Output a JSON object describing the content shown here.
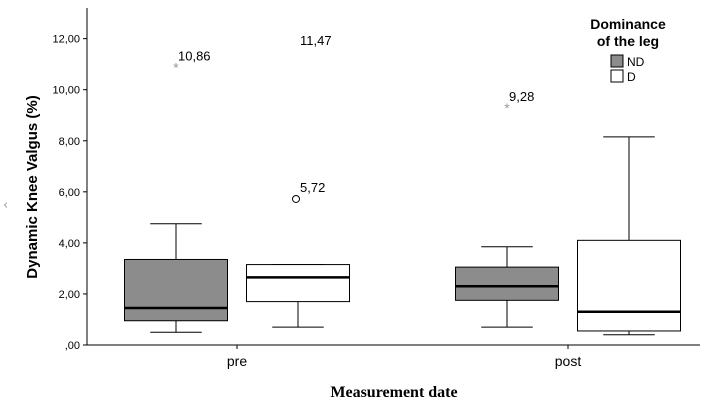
{
  "chart_data": {
    "type": "boxplot",
    "ylabel": "Dynamic Knee Valgus (%)",
    "xlabel": "Measurement date",
    "categories": [
      "pre",
      "post"
    ],
    "ylim": [
      0,
      13.2
    ],
    "yticks": [
      0,
      2,
      4,
      6,
      8,
      10,
      12
    ],
    "ytick_labels": [
      ",00",
      "2,00",
      "4,00",
      "6,00",
      "8,00",
      "10,00",
      "12,00"
    ],
    "legend": {
      "title_line1": "Dominance",
      "title_line2": "of the leg",
      "placement": "top-right",
      "entries": [
        {
          "name": "ND",
          "color": "#8c8c8c"
        },
        {
          "name": "D",
          "color": "#ffffff"
        }
      ]
    },
    "series": [
      {
        "name": "ND",
        "color": "#8c8c8c",
        "boxes": [
          {
            "category": "pre",
            "whisker_low": 0.5,
            "q1": 0.95,
            "median": 1.45,
            "q3": 3.35,
            "whisker_high": 4.75
          },
          {
            "category": "post",
            "whisker_low": 0.7,
            "q1": 1.75,
            "median": 2.3,
            "q3": 3.05,
            "whisker_high": 3.85
          }
        ]
      },
      {
        "name": "D",
        "color": "#ffffff",
        "boxes": [
          {
            "category": "pre",
            "whisker_low": 0.7,
            "q1": 1.7,
            "median": 2.65,
            "q3": 3.15,
            "whisker_high": 3.15
          },
          {
            "category": "post",
            "whisker_low": 0.4,
            "q1": 0.55,
            "median": 1.3,
            "q3": 4.1,
            "whisker_high": 8.15
          }
        ]
      }
    ],
    "outliers": [
      {
        "category": "pre",
        "series": "ND",
        "value": 10.86,
        "label": "10,86",
        "marker": "star"
      },
      {
        "category": "pre",
        "series": "D",
        "value": 11.47,
        "label": "11,47",
        "marker": "star"
      },
      {
        "category": "pre",
        "series": "D",
        "value": 5.72,
        "label": "5,72",
        "marker": "circle"
      },
      {
        "category": "post",
        "series": "ND",
        "value": 9.28,
        "label": "9,28",
        "marker": "star"
      }
    ]
  },
  "ui": {
    "nav_arrow_icon": "chevron-left-icon",
    "nav_arrow_glyph": "‹"
  }
}
